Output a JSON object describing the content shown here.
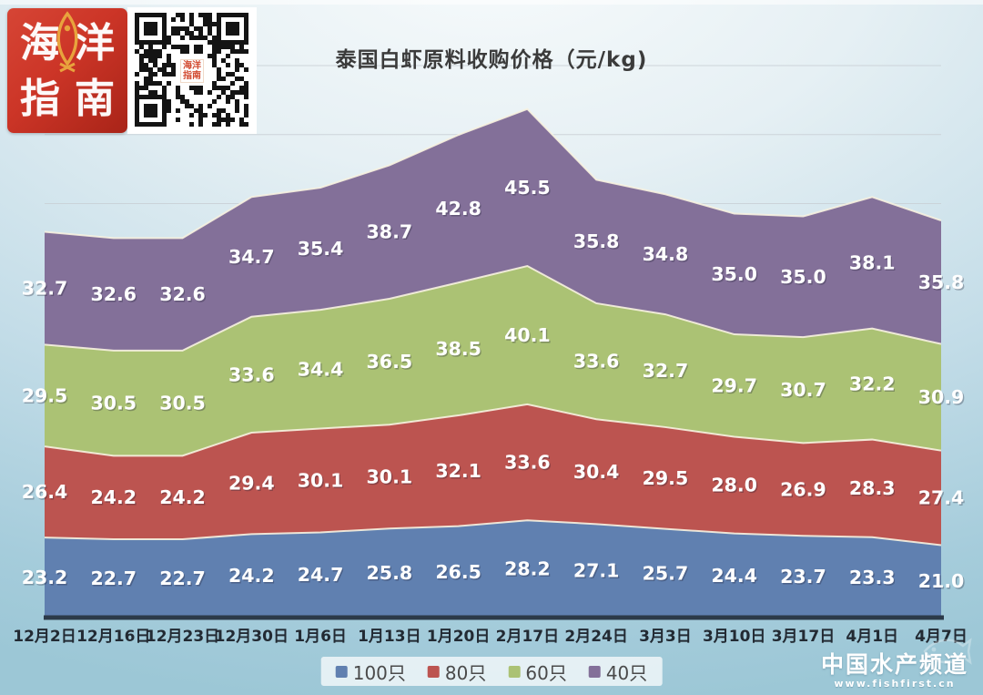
{
  "header": {
    "logo": {
      "chars": [
        "海",
        "洋",
        "指",
        "南"
      ]
    },
    "qr_center_text": "海洋指南"
  },
  "chart_data": {
    "type": "area",
    "stacked": true,
    "title": "泰国白虾原料收购价格（元/kg)",
    "xlabel": "",
    "ylabel": "",
    "ylim": [
      0,
      160
    ],
    "gridlines": [
      120,
      140,
      160
    ],
    "grid": true,
    "legend_position": "bottom",
    "data_labels": true,
    "categories": [
      "12月2日",
      "12月16日",
      "12月23日",
      "12月30日",
      "1月6日",
      "1月13日",
      "1月20日",
      "2月17日",
      "2月24日",
      "3月3日",
      "3月10日",
      "3月17日",
      "4月1日",
      "4月7日"
    ],
    "series": [
      {
        "name": "100只",
        "color": "#6080b0",
        "values": [
          23.2,
          22.7,
          22.7,
          24.2,
          24.7,
          25.8,
          26.5,
          28.2,
          27.1,
          25.7,
          24.4,
          23.7,
          23.3,
          21.0
        ]
      },
      {
        "name": "80只",
        "color": "#bc5450",
        "values": [
          26.4,
          24.2,
          24.2,
          29.4,
          30.1,
          30.1,
          32.1,
          33.6,
          30.4,
          29.5,
          28.0,
          26.9,
          28.3,
          27.4
        ]
      },
      {
        "name": "60只",
        "color": "#abc274",
        "values": [
          29.5,
          30.5,
          30.5,
          33.6,
          34.4,
          36.5,
          38.5,
          40.1,
          33.6,
          32.7,
          29.7,
          30.7,
          32.2,
          30.9
        ]
      },
      {
        "name": "40只",
        "color": "#837099",
        "values": [
          32.7,
          32.6,
          32.6,
          34.7,
          35.4,
          38.7,
          42.8,
          45.5,
          35.8,
          34.8,
          35.0,
          35.0,
          38.1,
          35.8
        ]
      }
    ],
    "colors": {
      "axis_line": "#2c3a49",
      "gridline": "#c9d0d6",
      "band_edge": "#f7f2e0",
      "label_text": "#ffffff",
      "axis_text": "#222a33"
    }
  },
  "watermark": {
    "brand": "中国水产频道",
    "url": "www.fishfirst.cn"
  }
}
